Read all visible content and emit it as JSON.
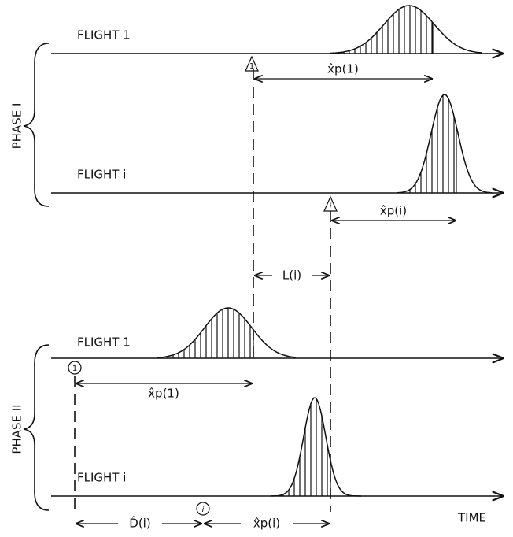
{
  "phases": [
    {
      "label": "PHASE I",
      "flights": [
        {
          "label": "FLIGHT 1",
          "marker": "1",
          "interval": "x̂p(1)"
        },
        {
          "label": "FLIGHT i",
          "marker": "i",
          "interval": "x̂p(i)"
        }
      ]
    },
    {
      "label": "PHASE II",
      "flights": [
        {
          "label": "FLIGHT 1",
          "marker": "1",
          "interval": "x̂p(1)"
        },
        {
          "label": "FLIGHT i",
          "marker": "i",
          "interval": "x̂p(i)"
        }
      ]
    }
  ],
  "lag": "L(i)",
  "delay": "D̂(i)",
  "axis_label": "TIME"
}
